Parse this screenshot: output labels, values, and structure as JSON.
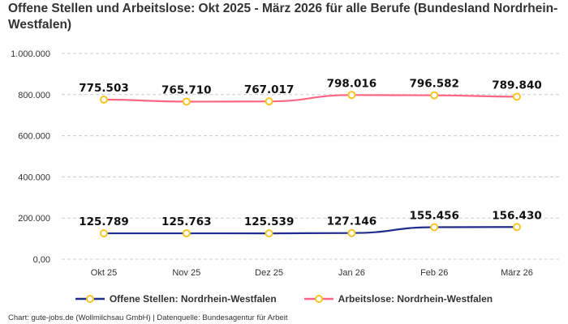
{
  "title": "Offene Stellen und Arbeitslose: Okt 2025 - März 2026 für alle Berufe (Bundesland Nordrhein-Westfalen)",
  "credit": "Chart: gute-jobs.de (Wollmilchsau GmbH) | Datenquelle: Bundesagentur für Arbeit",
  "chart_data": {
    "type": "line",
    "title": "Offene Stellen und Arbeitslose: Okt 2025 - März 2026 für alle Berufe (Bundesland Nordrhein-Westfalen)",
    "categories": [
      "Okt 25",
      "Nov 25",
      "Dez 25",
      "Jan 26",
      "Feb 26",
      "März 26"
    ],
    "ylim": [
      0,
      1000000
    ],
    "yticks": [
      "0,00",
      "200.000",
      "400.000",
      "600.000",
      "800.000",
      "1.000.000"
    ],
    "grid": true,
    "legend_placement": "bottom",
    "series": [
      {
        "name": "Offene Stellen: Nordrhein-Westfalen",
        "color": "#1f2e8c",
        "values": [
          125789,
          125763,
          125539,
          127146,
          155456,
          156430
        ],
        "labels": [
          "125.789",
          "125.763",
          "125.539",
          "127.146",
          "155.456",
          "156.430"
        ]
      },
      {
        "name": "Arbeitslose: Nordrhein-Westfalen",
        "color": "#ff6685",
        "values": [
          775503,
          765710,
          767017,
          798016,
          796582,
          789840
        ],
        "labels": [
          "775.503",
          "765.710",
          "767.017",
          "798.016",
          "796.582",
          "789.840"
        ]
      }
    ],
    "marker_color": "#f7c425"
  }
}
